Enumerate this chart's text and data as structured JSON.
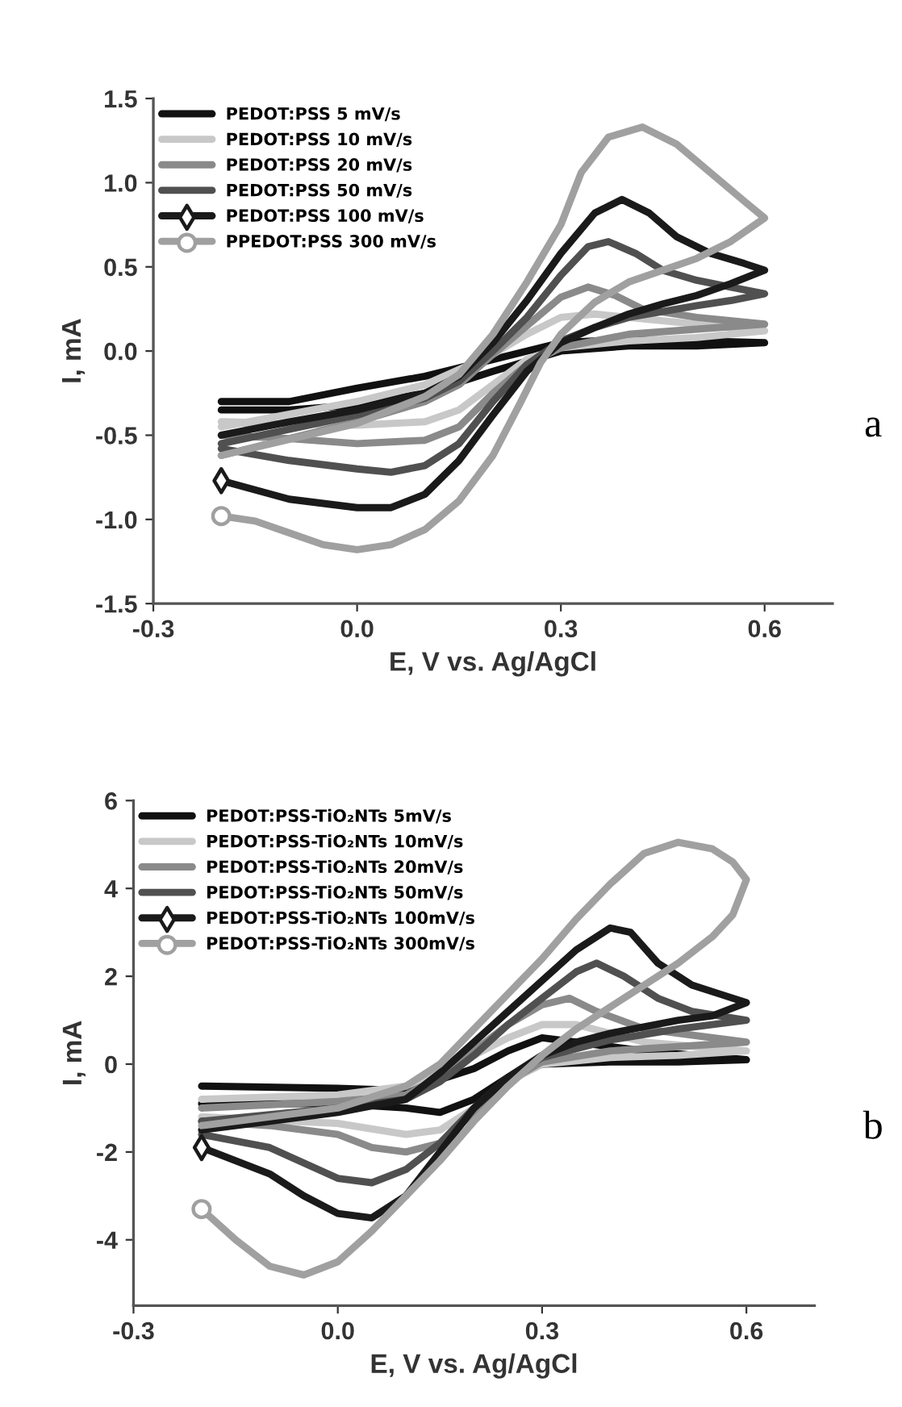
{
  "chart_data": [
    {
      "type": "line",
      "xlabel": "E, V vs. Ag/AgCl",
      "ylabel": "I, mA",
      "xlim": [
        -0.3,
        0.7
      ],
      "ylim": [
        -1.5,
        1.5
      ],
      "xticks": [
        -0.3,
        {
          "value": 0,
          "label": "0.0"
        },
        0.3,
        0.6
      ],
      "yticks": [
        -1.5,
        {
          "value": -1,
          "label": "-1.0"
        },
        -0.5,
        {
          "value": 0,
          "label": "0.0"
        },
        0.5,
        {
          "value": 1,
          "label": "1.0"
        },
        1.5
      ],
      "grid": false,
      "legend": "top left",
      "annotations": [
        "a"
      ],
      "series": [
        {
          "name": "PEDOT:PSS 5 mV/s",
          "color": "#111111",
          "x": [
            -0.2,
            -0.1,
            0.0,
            0.1,
            0.2,
            0.3,
            0.4,
            0.6,
            0.5,
            0.4,
            0.3,
            0.2,
            0.1,
            0.0,
            -0.1,
            -0.2
          ],
          "values": [
            -0.3,
            -0.3,
            -0.22,
            -0.15,
            -0.05,
            0.05,
            0.07,
            0.05,
            0.03,
            0.03,
            0.0,
            -0.12,
            -0.25,
            -0.32,
            -0.35,
            -0.35
          ]
        },
        {
          "name": "PEDOT:PSS 10 mV/s",
          "color": "#c8c8c8",
          "x": [
            -0.2,
            0.0,
            0.1,
            0.2,
            0.25,
            0.3,
            0.35,
            0.45,
            0.6,
            0.5,
            0.4,
            0.3,
            0.25,
            0.2,
            0.15,
            0.1,
            0.0,
            -0.2
          ],
          "values": [
            -0.45,
            -0.3,
            -0.2,
            -0.02,
            0.1,
            0.2,
            0.22,
            0.18,
            0.12,
            0.08,
            0.06,
            0.02,
            -0.05,
            -0.2,
            -0.35,
            -0.42,
            -0.44,
            -0.42
          ]
        },
        {
          "name": "PEDOT:PSS 20 mV/s",
          "color": "#8a8a8a",
          "x": [
            -0.2,
            0.0,
            0.1,
            0.15,
            0.2,
            0.25,
            0.3,
            0.34,
            0.38,
            0.42,
            0.5,
            0.6,
            0.5,
            0.4,
            0.3,
            0.25,
            0.2,
            0.15,
            0.1,
            0.0,
            -0.1,
            -0.2
          ],
          "values": [
            -0.62,
            -0.42,
            -0.3,
            -0.2,
            -0.02,
            0.15,
            0.32,
            0.38,
            0.33,
            0.25,
            0.2,
            0.16,
            0.13,
            0.1,
            0.02,
            -0.08,
            -0.25,
            -0.45,
            -0.53,
            -0.55,
            -0.52,
            -0.5
          ]
        },
        {
          "name": "PEDOT:PSS 50 mV/s",
          "color": "#505050",
          "x": [
            -0.2,
            0.0,
            0.1,
            0.15,
            0.2,
            0.25,
            0.3,
            0.34,
            0.37,
            0.41,
            0.45,
            0.5,
            0.55,
            0.6,
            0.55,
            0.5,
            0.4,
            0.35,
            0.3,
            0.25,
            0.2,
            0.15,
            0.1,
            0.05,
            0.0,
            -0.1,
            -0.2
          ],
          "values": [
            -0.55,
            -0.38,
            -0.28,
            -0.18,
            0.0,
            0.2,
            0.45,
            0.62,
            0.65,
            0.58,
            0.48,
            0.42,
            0.38,
            0.34,
            0.3,
            0.27,
            0.2,
            0.14,
            0.06,
            -0.08,
            -0.3,
            -0.55,
            -0.68,
            -0.72,
            -0.7,
            -0.65,
            -0.58
          ]
        },
        {
          "name": "PEDOT:PSS 100 mV/s",
          "color": "#1a1a1a",
          "x": [
            -0.2,
            -0.1,
            0.0,
            0.05,
            0.1,
            0.15,
            0.2,
            0.25,
            0.3,
            0.35,
            0.4,
            0.45,
            0.5,
            0.55,
            0.6,
            0.57,
            0.52,
            0.47,
            0.43,
            0.39,
            0.35,
            0.3,
            0.25,
            0.2,
            0.15,
            0.1,
            0.0,
            -0.1,
            -0.2
          ],
          "values": [
            -0.77,
            -0.88,
            -0.93,
            -0.93,
            -0.85,
            -0.65,
            -0.38,
            -0.12,
            0.05,
            0.14,
            0.22,
            0.28,
            0.33,
            0.4,
            0.48,
            0.52,
            0.58,
            0.68,
            0.82,
            0.9,
            0.82,
            0.58,
            0.3,
            0.05,
            -0.15,
            -0.25,
            -0.35,
            -0.42,
            -0.5
          ]
        },
        {
          "type": "scatter",
          "color": "#1a1a1a",
          "marker": "diamond",
          "x": [
            -0.2
          ],
          "values": [
            -0.77
          ]
        },
        {
          "name": "PPEDOT:PSS 300 mV/s",
          "color": "#a0a0a0",
          "x": [
            -0.2,
            -0.15,
            -0.1,
            -0.05,
            0.0,
            0.05,
            0.1,
            0.15,
            0.2,
            0.24,
            0.27,
            0.3,
            0.35,
            0.4,
            0.45,
            0.5,
            0.55,
            0.6,
            0.57,
            0.52,
            0.47,
            0.42,
            0.37,
            0.33,
            0.3,
            0.25,
            0.2,
            0.15,
            0.1,
            0.0,
            -0.2
          ],
          "values": [
            -0.98,
            -1.01,
            -1.08,
            -1.15,
            -1.18,
            -1.15,
            -1.06,
            -0.89,
            -0.62,
            -0.31,
            -0.07,
            0.1,
            0.29,
            0.41,
            0.48,
            0.55,
            0.65,
            0.79,
            0.89,
            1.06,
            1.23,
            1.33,
            1.27,
            1.06,
            0.75,
            0.41,
            0.1,
            -0.14,
            -0.27,
            -0.43,
            -0.62
          ]
        },
        {
          "type": "scatter",
          "color": "#a0a0a0",
          "marker": "circle",
          "x": [
            -0.2
          ],
          "values": [
            -0.98
          ]
        }
      ]
    },
    {
      "type": "line",
      "xlabel": "E, V vs. Ag/AgCl",
      "ylabel": "I, mA",
      "xlim": [
        -0.3,
        0.7
      ],
      "ylim": [
        -5.5,
        6
      ],
      "xticks": [
        -0.3,
        {
          "value": 0,
          "label": "0.0"
        },
        0.3,
        0.6
      ],
      "yticks": [
        -4,
        -2,
        0,
        2,
        4,
        6
      ],
      "grid": false,
      "legend": "top left",
      "annotations": [
        "b"
      ],
      "series": [
        {
          "name": "PEDOT:PSS-TiO₂NTs 5mV/s",
          "color": "#111111",
          "x": [
            -0.2,
            0.0,
            0.1,
            0.2,
            0.25,
            0.3,
            0.35,
            0.45,
            0.6,
            0.5,
            0.4,
            0.3,
            0.25,
            0.2,
            0.15,
            0.1,
            0.0,
            -0.2
          ],
          "values": [
            -0.5,
            -0.55,
            -0.6,
            -0.1,
            0.3,
            0.6,
            0.5,
            0.3,
            0.1,
            0.05,
            0.05,
            0.0,
            -0.3,
            -0.8,
            -1.1,
            -1.0,
            -0.9,
            -0.9
          ]
        },
        {
          "name": "PEDOT:PSS-TiO₂NTs 10mV/s",
          "color": "#c8c8c8",
          "x": [
            -0.2,
            0.0,
            0.1,
            0.2,
            0.25,
            0.3,
            0.35,
            0.45,
            0.6,
            0.5,
            0.4,
            0.3,
            0.25,
            0.2,
            0.15,
            0.1,
            0.0,
            -0.2
          ],
          "values": [
            -0.8,
            -0.7,
            -0.5,
            0.2,
            0.6,
            0.9,
            0.9,
            0.5,
            0.3,
            0.2,
            0.15,
            0.0,
            -0.4,
            -1.0,
            -1.5,
            -1.6,
            -1.35,
            -1.2
          ]
        },
        {
          "name": "PEDOT:PSS-TiO₂NTs 20mV/s",
          "color": "#8a8a8a",
          "x": [
            -0.2,
            0.0,
            0.1,
            0.15,
            0.2,
            0.25,
            0.3,
            0.34,
            0.38,
            0.45,
            0.6,
            0.5,
            0.4,
            0.3,
            0.25,
            0.2,
            0.15,
            0.1,
            0.05,
            0.0,
            -0.1,
            -0.2
          ],
          "values": [
            -1.0,
            -0.85,
            -0.7,
            -0.3,
            0.3,
            0.9,
            1.35,
            1.5,
            1.2,
            0.8,
            0.5,
            0.4,
            0.3,
            0.05,
            -0.4,
            -1.1,
            -1.8,
            -2.0,
            -1.9,
            -1.6,
            -1.4,
            -1.3
          ]
        },
        {
          "name": "PEDOT:PSS-TiO₂NTs 50mV/s",
          "color": "#505050",
          "x": [
            -0.2,
            0.0,
            0.1,
            0.15,
            0.2,
            0.25,
            0.3,
            0.35,
            0.38,
            0.42,
            0.47,
            0.52,
            0.6,
            0.5,
            0.4,
            0.3,
            0.25,
            0.2,
            0.15,
            0.1,
            0.05,
            0.0,
            -0.1,
            -0.2
          ],
          "values": [
            -1.3,
            -1.0,
            -0.8,
            -0.4,
            0.2,
            0.9,
            1.5,
            2.1,
            2.3,
            2.0,
            1.5,
            1.2,
            1.0,
            0.8,
            0.55,
            0.15,
            -0.3,
            -1.0,
            -1.8,
            -2.4,
            -2.7,
            -2.6,
            -1.9,
            -1.6
          ]
        },
        {
          "name": "PEDOT:PSS-TiO₂NTs 100mV/s",
          "color": "#1a1a1a",
          "x": [
            -0.2,
            -0.1,
            -0.05,
            0.0,
            0.05,
            0.1,
            0.15,
            0.2,
            0.25,
            0.3,
            0.35,
            0.4,
            0.5,
            0.55,
            0.6,
            0.56,
            0.52,
            0.47,
            0.43,
            0.4,
            0.35,
            0.3,
            0.25,
            0.2,
            0.15,
            0.1,
            0.0,
            -0.1,
            -0.2
          ],
          "values": [
            -1.9,
            -2.5,
            -3.0,
            -3.4,
            -3.5,
            -3.0,
            -2.0,
            -1.0,
            -0.3,
            0.2,
            0.5,
            0.7,
            1.0,
            1.1,
            1.4,
            1.6,
            1.8,
            2.3,
            3.0,
            3.1,
            2.6,
            1.9,
            1.2,
            0.5,
            -0.2,
            -0.8,
            -1.1,
            -1.3,
            -1.5
          ]
        },
        {
          "type": "scatter",
          "color": "#1a1a1a",
          "marker": "diamond",
          "x": [
            -0.2
          ],
          "values": [
            -1.9
          ]
        },
        {
          "name": "PEDOT:PSS-TiO₂NTs 300mV/s",
          "color": "#a0a0a0",
          "x": [
            -0.2,
            -0.15,
            -0.1,
            -0.05,
            0.0,
            0.05,
            0.1,
            0.15,
            0.2,
            0.25,
            0.3,
            0.35,
            0.4,
            0.45,
            0.5,
            0.55,
            0.58,
            0.6,
            0.58,
            0.55,
            0.5,
            0.45,
            0.4,
            0.35,
            0.3,
            0.25,
            0.2,
            0.15,
            0.1,
            0.0,
            -0.1,
            -0.2
          ],
          "values": [
            -3.3,
            -4.0,
            -4.6,
            -4.8,
            -4.5,
            -3.8,
            -3.0,
            -2.2,
            -1.3,
            -0.5,
            0.2,
            0.8,
            1.3,
            1.8,
            2.3,
            2.9,
            3.4,
            4.2,
            4.6,
            4.9,
            5.05,
            4.8,
            4.1,
            3.3,
            2.4,
            1.6,
            0.8,
            0.0,
            -0.5,
            -1.0,
            -1.2,
            -1.4
          ]
        },
        {
          "type": "scatter",
          "color": "#a0a0a0",
          "marker": "circle",
          "x": [
            -0.2
          ],
          "values": [
            -3.3
          ]
        }
      ]
    }
  ]
}
